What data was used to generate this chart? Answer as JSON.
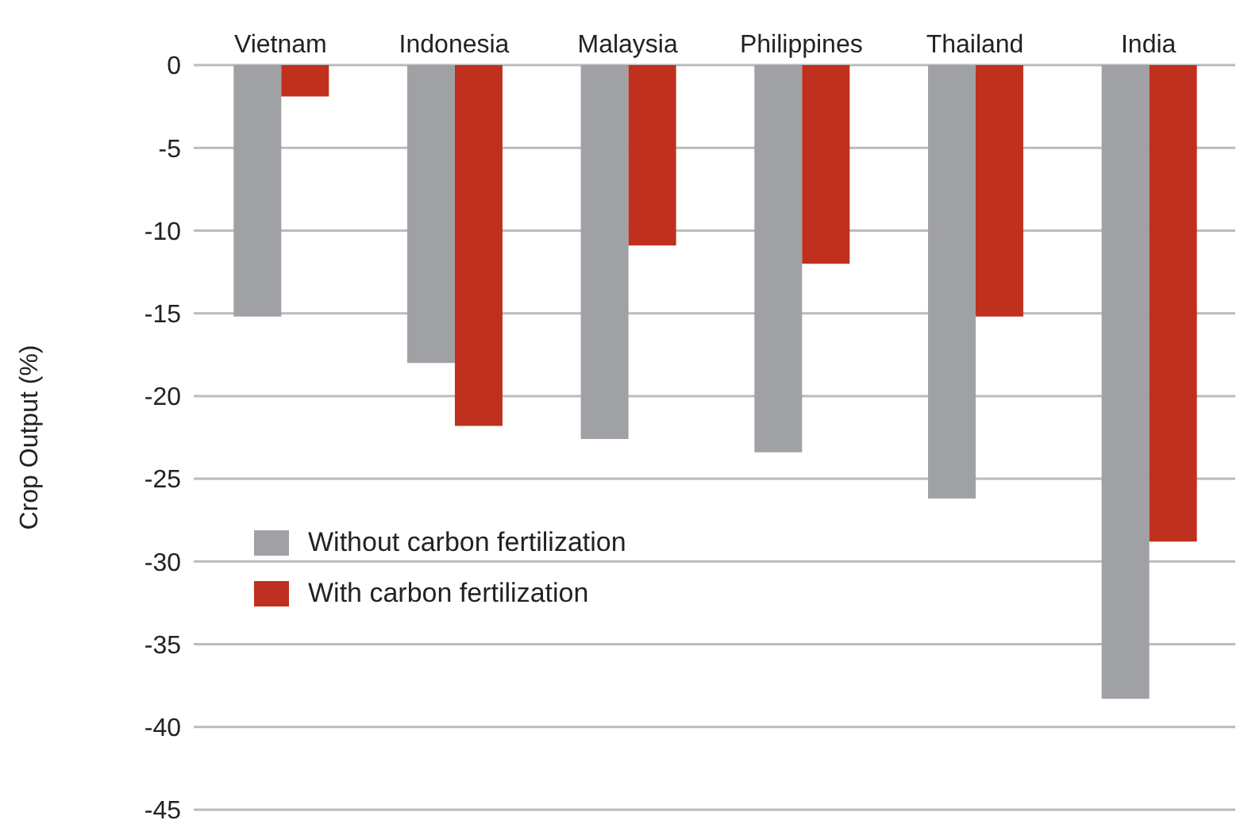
{
  "chart_data": {
    "type": "bar",
    "ylabel": "Crop Output (%)",
    "categories": [
      "Vietnam",
      "Indonesia",
      "Malaysia",
      "Philippines",
      "Thailand",
      "India"
    ],
    "series": [
      {
        "name": "Without carbon fertilization",
        "color": "#a0a1a4",
        "values": [
          -15.2,
          -18.0,
          -22.6,
          -23.4,
          -26.2,
          -38.3
        ]
      },
      {
        "name": "With carbon fertilization",
        "color": "#bf311e",
        "values": [
          -1.9,
          -21.8,
          -10.9,
          -12.0,
          -15.2,
          -28.8
        ]
      }
    ],
    "ylim": [
      -45,
      0
    ],
    "yticks": [
      0,
      -5,
      -10,
      -15,
      -20,
      -25,
      -30,
      -35,
      -40,
      -45
    ],
    "grid": "y",
    "legend": "left"
  }
}
